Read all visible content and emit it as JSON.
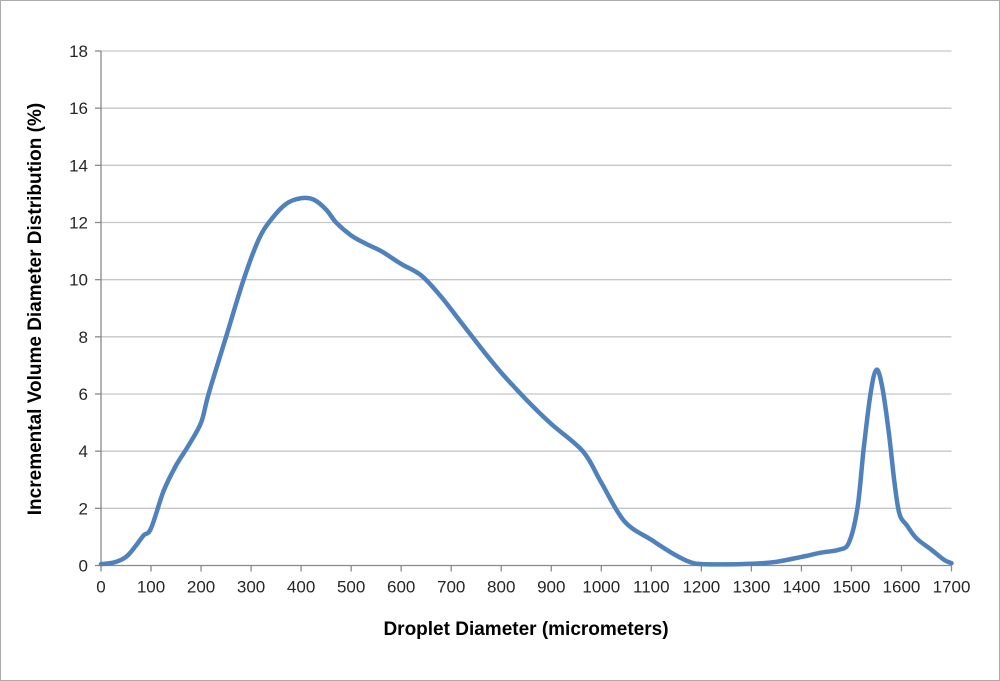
{
  "window": {
    "background": "#FFFFFF",
    "border_color": "#ABABAB"
  },
  "style": {
    "axis_color": "#898989",
    "grid_color": "#C6C6C6",
    "tick_label_color": "#262626",
    "axis_title_color": "#000000",
    "series_color": "#4F81BD",
    "series_width": 4.5
  },
  "chart_data": {
    "type": "line",
    "title": "",
    "xlabel": "Droplet Diameter (micrometers)",
    "ylabel": "Incremental Volume Diameter Distribution (%)",
    "xlim": [
      0,
      1700
    ],
    "ylim": [
      0,
      18
    ],
    "x_ticks": [
      0,
      100,
      200,
      300,
      400,
      500,
      600,
      700,
      800,
      900,
      1000,
      1100,
      1200,
      1300,
      1400,
      1500,
      1600,
      1700
    ],
    "y_ticks": [
      0,
      2,
      4,
      6,
      8,
      10,
      12,
      14,
      16,
      18
    ],
    "grid": "horizontal-major",
    "legend": "none",
    "line_style": "smooth",
    "series": [
      {
        "name": "Incremental Volume Diameter Distribution",
        "color": "#4F81BD",
        "points": [
          [
            0,
            0.05
          ],
          [
            25,
            0.1
          ],
          [
            50,
            0.3
          ],
          [
            70,
            0.7
          ],
          [
            85,
            1.05
          ],
          [
            100,
            1.3
          ],
          [
            125,
            2.6
          ],
          [
            150,
            3.5
          ],
          [
            175,
            4.2
          ],
          [
            200,
            5.0
          ],
          [
            215,
            6.0
          ],
          [
            250,
            8.0
          ],
          [
            285,
            10.0
          ],
          [
            315,
            11.4
          ],
          [
            340,
            12.1
          ],
          [
            370,
            12.65
          ],
          [
            400,
            12.85
          ],
          [
            425,
            12.8
          ],
          [
            450,
            12.45
          ],
          [
            470,
            12.0
          ],
          [
            500,
            11.55
          ],
          [
            530,
            11.25
          ],
          [
            560,
            11.0
          ],
          [
            600,
            10.55
          ],
          [
            640,
            10.15
          ],
          [
            680,
            9.4
          ],
          [
            720,
            8.5
          ],
          [
            760,
            7.6
          ],
          [
            800,
            6.75
          ],
          [
            850,
            5.8
          ],
          [
            900,
            4.95
          ],
          [
            963,
            4.0
          ],
          [
            1000,
            2.9
          ],
          [
            1046,
            1.55
          ],
          [
            1100,
            0.9
          ],
          [
            1150,
            0.35
          ],
          [
            1190,
            0.06
          ],
          [
            1240,
            0.04
          ],
          [
            1300,
            0.06
          ],
          [
            1350,
            0.13
          ],
          [
            1400,
            0.3
          ],
          [
            1440,
            0.45
          ],
          [
            1475,
            0.55
          ],
          [
            1495,
            0.8
          ],
          [
            1512,
            2.0
          ],
          [
            1524,
            4.0
          ],
          [
            1538,
            6.0
          ],
          [
            1550,
            6.85
          ],
          [
            1562,
            6.2
          ],
          [
            1575,
            4.6
          ],
          [
            1586,
            2.9
          ],
          [
            1596,
            1.8
          ],
          [
            1611,
            1.4
          ],
          [
            1630,
            0.95
          ],
          [
            1660,
            0.55
          ],
          [
            1685,
            0.2
          ],
          [
            1700,
            0.08
          ]
        ]
      }
    ]
  }
}
